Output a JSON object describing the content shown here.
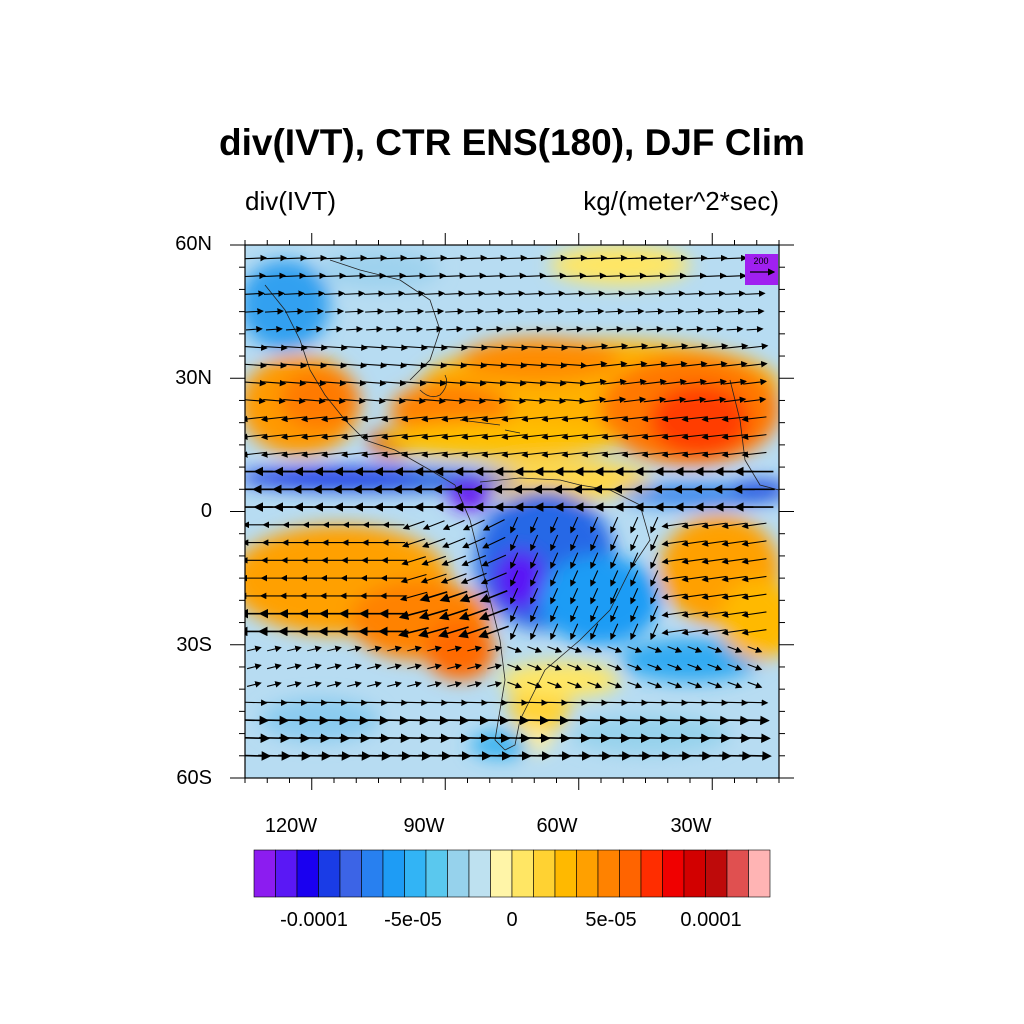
{
  "title": "div(IVT), CTR ENS(180), DJF Clim",
  "left_label": "div(IVT)",
  "right_label": "kg/(meter^2*sec)",
  "lat_ticks": [
    "60N",
    "30N",
    "0",
    "30S",
    "60S"
  ],
  "lon_ticks": [
    "120W",
    "90W",
    "60W",
    "30W"
  ],
  "reference_vector": {
    "label": "200",
    "box_color": "#a020f0"
  },
  "colorbar": {
    "colors": [
      "#8c1cf0",
      "#5a18f5",
      "#1a00f0",
      "#1a3ce6",
      "#3c64e6",
      "#2880f0",
      "#1e9cf5",
      "#32b4f5",
      "#5ac8ee",
      "#96d2ec",
      "#bee1f0",
      "#fff5a8",
      "#ffe664",
      "#ffd232",
      "#ffb900",
      "#ffa000",
      "#ff8200",
      "#ff6400",
      "#ff2d00",
      "#f00000",
      "#d20000",
      "#be0a0a",
      "#e05050",
      "#ffb4b4"
    ],
    "tick_labels": [
      "-0.0001",
      "-5e-05",
      "0",
      "5e-05",
      "0.0001"
    ]
  }
}
